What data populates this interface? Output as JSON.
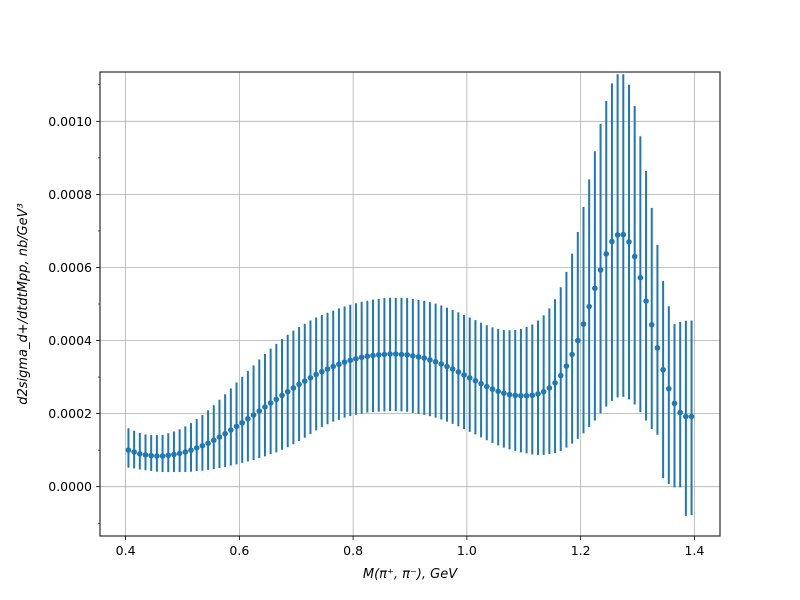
{
  "chart_data": {
    "type": "scatter",
    "xlabel": "M(π⁺, π⁻), GeV",
    "ylabel": "d2sigma_d+/dtdtMpp, nb/GeV³",
    "xlim": [
      0.355,
      1.445
    ],
    "ylim": [
      -0.000135,
      0.001135
    ],
    "x_ticks": [
      0.4,
      0.6,
      0.8,
      1.0,
      1.2,
      1.4
    ],
    "x_tick_labels": [
      "0.4",
      "0.6",
      "0.8",
      "1.0",
      "1.2",
      "1.4"
    ],
    "y_ticks": [
      0.0,
      0.0002,
      0.0004,
      0.0006,
      0.0008,
      0.001
    ],
    "y_tick_labels": [
      "0.0000",
      "0.0002",
      "0.0004",
      "0.0006",
      "0.0008",
      "0.0010"
    ],
    "y_minor_ticks": [
      -0.0001,
      0.0001,
      0.0003,
      0.0005,
      0.0007,
      0.0009,
      0.0011
    ],
    "grid": true,
    "color": "#1f77b4",
    "series": [
      {
        "x": [
          0.405,
          0.415,
          0.425,
          0.435,
          0.445,
          0.455,
          0.465,
          0.475,
          0.485,
          0.495,
          0.505,
          0.515,
          0.525,
          0.535,
          0.545,
          0.555,
          0.565,
          0.575,
          0.585,
          0.595,
          0.605,
          0.615,
          0.625,
          0.635,
          0.645,
          0.655,
          0.665,
          0.675,
          0.685,
          0.695,
          0.705,
          0.715,
          0.725,
          0.735,
          0.745,
          0.755,
          0.765,
          0.775,
          0.785,
          0.795,
          0.805,
          0.815,
          0.825,
          0.835,
          0.845,
          0.855,
          0.865,
          0.875,
          0.885,
          0.895,
          0.905,
          0.915,
          0.925,
          0.935,
          0.945,
          0.955,
          0.965,
          0.975,
          0.985,
          0.995,
          1.005,
          1.015,
          1.025,
          1.035,
          1.045,
          1.055,
          1.065,
          1.075,
          1.085,
          1.095,
          1.105,
          1.115,
          1.125,
          1.135,
          1.145,
          1.155,
          1.165,
          1.175,
          1.185,
          1.195,
          1.205,
          1.215,
          1.225,
          1.235,
          1.245,
          1.255,
          1.265,
          1.275,
          1.285,
          1.295,
          1.305,
          1.315,
          1.325,
          1.335,
          1.345,
          1.355,
          1.365,
          1.375,
          1.385,
          1.395
        ],
        "y": [
          0.0001,
          9.5e-05,
          9e-05,
          8.7e-05,
          8.5e-05,
          8.4e-05,
          8.4e-05,
          8.6e-05,
          8.8e-05,
          9.1e-05,
          9.5e-05,
          0.0001,
          0.000106,
          0.000112,
          0.000119,
          0.000127,
          0.000136,
          0.000145,
          0.000155,
          0.000165,
          0.000175,
          0.000186,
          0.000196,
          0.000207,
          0.000218,
          0.000229,
          0.000239,
          0.00025,
          0.00026,
          0.00027,
          0.00028,
          0.000289,
          0.000298,
          0.000307,
          0.000315,
          0.000322,
          0.000329,
          0.000335,
          0.000341,
          0.000346,
          0.00035,
          0.000354,
          0.000357,
          0.000359,
          0.000361,
          0.000362,
          0.000363,
          0.000363,
          0.000362,
          0.000361,
          0.000358,
          0.000355,
          0.000352,
          0.000347,
          0.000342,
          0.000336,
          0.000329,
          0.000322,
          0.000314,
          0.000306,
          0.000298,
          0.00029,
          0.000282,
          0.000274,
          0.000267,
          0.000261,
          0.000256,
          0.000252,
          0.00025,
          0.000249,
          0.000249,
          0.00025,
          0.000254,
          0.00026,
          0.00027,
          0.000284,
          0.000304,
          0.00033,
          0.000362,
          0.0004,
          0.000445,
          0.000493,
          0.000543,
          0.000593,
          0.000637,
          0.000671,
          0.000689,
          0.00069,
          0.00067,
          0.00063,
          0.000572,
          0.000508,
          0.000443,
          0.00038,
          0.00032,
          0.000268,
          0.000228,
          0.000203,
          0.000192,
          0.000192
        ],
        "err_low": [
          4.8e-05,
          4.5e-05,
          4.3e-05,
          4.2e-05,
          4.2e-05,
          4.3e-05,
          4.4e-05,
          4.6e-05,
          4.8e-05,
          5.1e-05,
          5.5e-05,
          5.9e-05,
          6.3e-05,
          6.8e-05,
          7.3e-05,
          7.9e-05,
          8.5e-05,
          9.1e-05,
          9.7e-05,
          0.000104,
          0.00011,
          0.000117,
          0.000123,
          0.000129,
          0.000135,
          0.00014,
          0.000145,
          0.000149,
          0.000152,
          0.000154,
          0.000155,
          0.000155,
          0.000154,
          0.000153,
          0.000152,
          0.000151,
          0.000151,
          0.000152,
          0.000152,
          0.000153,
          0.000153,
          0.000154,
          0.000154,
          0.000155,
          0.000156,
          0.000156,
          0.000156,
          0.000156,
          0.000156,
          0.000156,
          0.000156,
          0.000156,
          0.000155,
          0.000154,
          0.000153,
          0.000152,
          0.000151,
          0.00015,
          0.000149,
          0.000148,
          0.000148,
          0.000147,
          0.000147,
          0.000147,
          0.000147,
          0.000148,
          0.000149,
          0.00015,
          0.000152,
          0.000155,
          0.000158,
          0.000162,
          0.000167,
          0.000173,
          0.000181,
          0.000192,
          0.000206,
          0.000223,
          0.000244,
          0.000269,
          0.000299,
          0.00033,
          0.000362,
          0.000392,
          0.000418,
          0.000436,
          0.000445,
          0.000444,
          0.000431,
          0.000405,
          0.000368,
          0.000327,
          0.000285,
          0.000238,
          0.000297,
          0.000261,
          0.00023,
          0.000205,
          0.000272,
          0.00027
        ],
        "err_high": [
          6e-05,
          5.8e-05,
          5.7e-05,
          5.6e-05,
          5.6e-05,
          5.7e-05,
          5.8e-05,
          6e-05,
          6.3e-05,
          6.6e-05,
          7e-05,
          7.4e-05,
          7.9e-05,
          8.4e-05,
          9e-05,
          9.6e-05,
          0.000102,
          0.000108,
          0.000114,
          0.00012,
          0.000126,
          0.000131,
          0.000136,
          0.000141,
          0.000145,
          0.000149,
          0.000152,
          0.000154,
          0.000156,
          0.000157,
          0.000157,
          0.000157,
          0.000157,
          0.000156,
          0.000155,
          0.000154,
          0.000153,
          0.000153,
          0.000152,
          0.000152,
          0.000152,
          0.000152,
          0.000152,
          0.000153,
          0.000153,
          0.000154,
          0.000154,
          0.000154,
          0.000155,
          0.000155,
          0.000156,
          0.000156,
          0.000157,
          0.000158,
          0.000159,
          0.00016,
          0.000161,
          0.000162,
          0.000163,
          0.000164,
          0.000165,
          0.000166,
          0.000167,
          0.000168,
          0.000169,
          0.000171,
          0.000173,
          0.000176,
          0.000179,
          0.000183,
          0.000188,
          0.000194,
          0.000201,
          0.000209,
          0.000218,
          0.000229,
          0.000242,
          0.000258,
          0.000276,
          0.000297,
          0.000321,
          0.000348,
          0.000375,
          0.0004,
          0.000419,
          0.000433,
          0.00044,
          0.000439,
          0.00043,
          0.000412,
          0.000387,
          0.000356,
          0.00032,
          0.000282,
          0.000243,
          0.000226,
          0.000217,
          0.000248,
          0.000262,
          0.000263
        ]
      }
    ]
  }
}
